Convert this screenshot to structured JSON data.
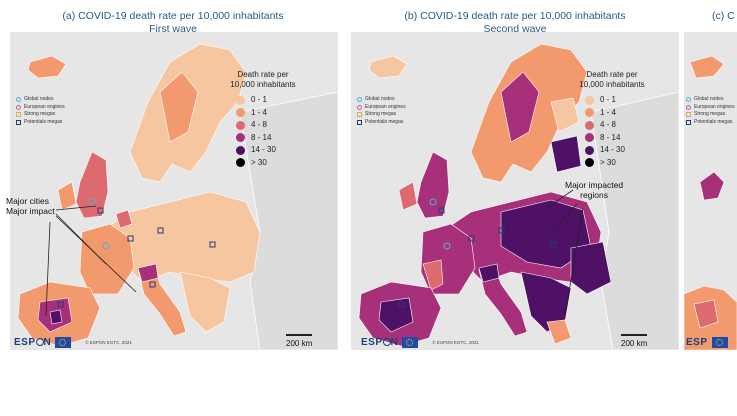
{
  "panels": [
    {
      "title_line1": "(a) COVID-19 death rate per 10,000 inhabitants",
      "title_line2": "First wave",
      "note": [
        "Major cities",
        "Major impact"
      ],
      "copyright": "© ESPON EGTC, 2021",
      "scale": "200 km"
    },
    {
      "title_line1": "(b) COVID-19 death rate per 10,000 inhabitants",
      "title_line2": "Second wave",
      "note": [
        "Major impacted",
        "regions"
      ],
      "copyright": "© ESPON EGTC, 2021",
      "scale": "200 km"
    },
    {
      "title_line1": "(c) C"
    }
  ],
  "key": [
    "Global nodes",
    "European engines",
    "Strong megas",
    "Potentials megas"
  ],
  "key_colors": [
    "#4fb3d6",
    "#d45a9a",
    "#d8b04a",
    "#233a7a"
  ],
  "legend": {
    "title_line1": "Death rate per",
    "title_line2": "10,000 inhabitants",
    "classes": [
      {
        "label": "0 - 1",
        "color": "#f6c6a0"
      },
      {
        "label": "1 - 4",
        "color": "#f29a6e"
      },
      {
        "label": "4 - 8",
        "color": "#dc6a6e"
      },
      {
        "label": "8 - 14",
        "color": "#a8307a"
      },
      {
        "label": "14 - 30",
        "color": "#4e1166"
      },
      {
        "label": "> 30",
        "color": "#000000"
      }
    ]
  },
  "logo_text": "ESP",
  "logo_text2": "N"
}
